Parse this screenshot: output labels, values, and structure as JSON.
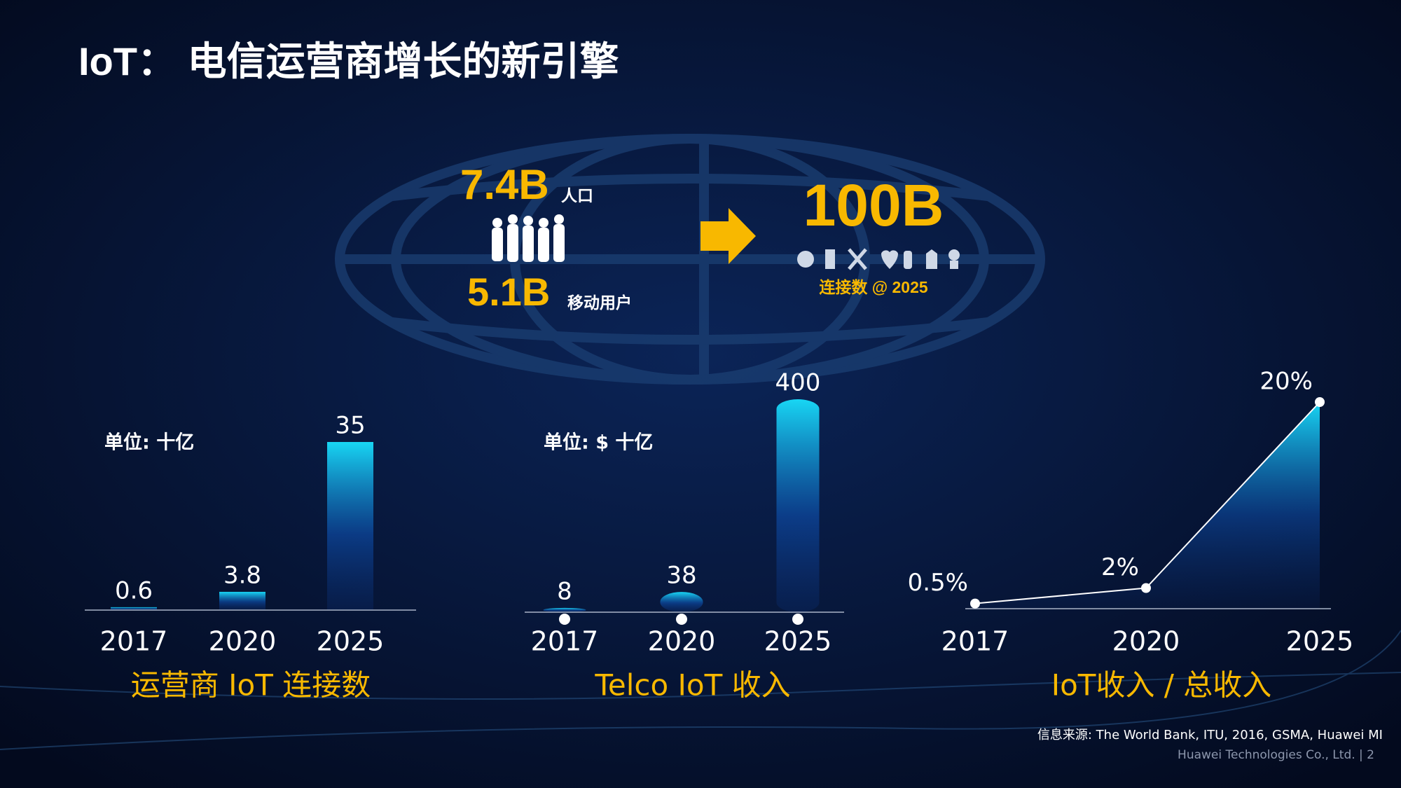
{
  "title": "IoT：  电信运营商增长的新引擎",
  "hero": {
    "population": "7.4B",
    "population_label": "人口",
    "mobile": "5.1B",
    "mobile_label": "移动用户",
    "connections": "100B",
    "connections_label": "连接数 @ 2025"
  },
  "source": "信息来源: The World Bank, ITU, 2016, GSMA, Huawei MI",
  "footer": "Huawei Technologies Co., Ltd.  |   2",
  "chart_data": [
    {
      "type": "bar",
      "title": "运营商 IoT 连接数",
      "unit_label": "单位: 十亿",
      "categories": [
        "2017",
        "2020",
        "2025"
      ],
      "values": [
        0.6,
        3.8,
        35
      ],
      "color": "#18d6f4",
      "rounded": false,
      "ylim": [
        0,
        35
      ]
    },
    {
      "type": "bar",
      "title": "Telco IoT 收入",
      "unit_label": "单位: $ 十亿",
      "categories": [
        "2017",
        "2020",
        "2025"
      ],
      "values": [
        8,
        38,
        400
      ],
      "color": "#18d6f4",
      "rounded": true,
      "ylim": [
        0,
        400
      ]
    },
    {
      "type": "area",
      "title": "IoT收入 / 总收入",
      "categories": [
        "2017",
        "2020",
        "2025"
      ],
      "values": [
        0.5,
        2,
        20
      ],
      "value_labels": [
        "0.5%",
        "2%",
        "20%"
      ],
      "color": "#18d6f4",
      "ylim": [
        0,
        20
      ]
    }
  ]
}
